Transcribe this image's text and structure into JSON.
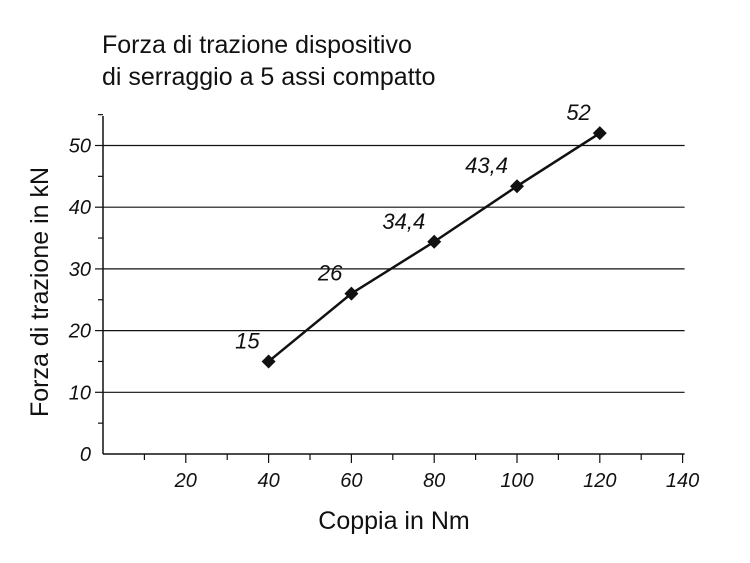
{
  "chart_data": {
    "type": "line",
    "title_lines": [
      "Forza di trazione dispositivo",
      "di serraggio a 5 assi compatto"
    ],
    "xlabel": "Coppia in Nm",
    "ylabel": "Forza di trazione in kN",
    "xlim": [
      0,
      140
    ],
    "ylim": [
      0,
      55
    ],
    "x_ticks": [
      20,
      40,
      60,
      80,
      100,
      120,
      140
    ],
    "y_ticks": [
      0,
      10,
      20,
      30,
      40,
      50
    ],
    "grid": "horizontal",
    "series": [
      {
        "x": [
          40,
          60,
          80,
          100,
          120
        ],
        "values": [
          15,
          26,
          34.4,
          43.4,
          52
        ],
        "labels": [
          "15",
          "26",
          "34,4",
          "43,4",
          "52"
        ],
        "marker": "diamond",
        "color": "#111111"
      }
    ]
  }
}
